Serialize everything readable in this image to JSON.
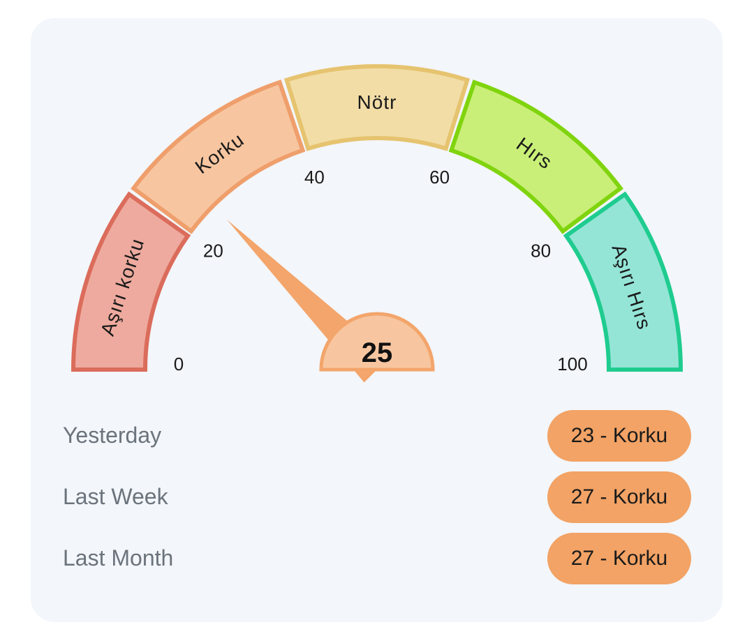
{
  "gauge": {
    "value": 25,
    "value_label": "25",
    "min": 0,
    "max": 100,
    "ticks": [
      {
        "value": 0,
        "label": "0"
      },
      {
        "value": 20,
        "label": "20"
      },
      {
        "value": 40,
        "label": "40"
      },
      {
        "value": 60,
        "label": "60"
      },
      {
        "value": 80,
        "label": "80"
      },
      {
        "value": 100,
        "label": "100"
      }
    ],
    "segments": [
      {
        "label": "Aşırı korku",
        "from": 0,
        "to": 20,
        "fill": "#eeaa9e",
        "stroke": "#db6c5b"
      },
      {
        "label": "Korku",
        "from": 20,
        "to": 40,
        "fill": "#f7c6a0",
        "stroke": "#ef9f6c"
      },
      {
        "label": "Nötr",
        "from": 40,
        "to": 60,
        "fill": "#f2dda6",
        "stroke": "#e6c36f"
      },
      {
        "label": "Hırs",
        "from": 60,
        "to": 80,
        "fill": "#c9ef78",
        "stroke": "#80d40e"
      },
      {
        "label": "Aşırı Hırs",
        "from": 80,
        "to": 100,
        "fill": "#95e5d7",
        "stroke": "#1fcc8f"
      }
    ],
    "needle_color": "#f3a56b",
    "hub_fill": "#f7c6a0",
    "hub_stroke": "#f3a56b"
  },
  "history": [
    {
      "label": "Yesterday",
      "badge": "23 - Korku",
      "color": "#f2a365"
    },
    {
      "label": "Last Week",
      "badge": "27 - Korku",
      "color": "#f2a365"
    },
    {
      "label": "Last Month",
      "badge": "27 - Korku",
      "color": "#f2a365"
    }
  ]
}
